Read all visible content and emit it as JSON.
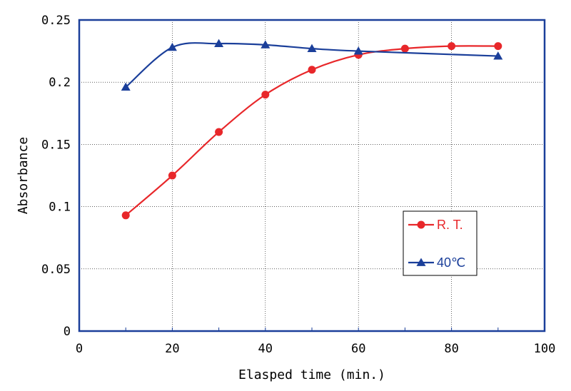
{
  "chart_data": {
    "type": "line",
    "title": "",
    "xlabel": "Elasped time (min.)",
    "ylabel": "Absorbance",
    "xlim": [
      0,
      100
    ],
    "ylim": [
      0,
      0.25
    ],
    "xticks": [
      "0",
      "20",
      "40",
      "60",
      "80",
      "100"
    ],
    "yticks": [
      "0",
      "0.05",
      "0.1",
      "0.15",
      "0.2",
      "0.25"
    ],
    "grid": true,
    "legend_position": "right-middle",
    "series": [
      {
        "name": "R. T.",
        "color": "#e8272a",
        "marker": "circle",
        "x": [
          10,
          20,
          30,
          40,
          50,
          60,
          70,
          80,
          90
        ],
        "values": [
          0.093,
          0.125,
          0.16,
          0.19,
          0.21,
          0.222,
          0.227,
          0.229,
          0.229
        ]
      },
      {
        "name": "40℃",
        "color": "#1b3f9a",
        "marker": "triangle",
        "x": [
          10,
          20,
          30,
          40,
          50,
          60,
          90
        ],
        "values": [
          0.196,
          0.228,
          0.231,
          0.23,
          0.227,
          0.225,
          0.221
        ]
      }
    ]
  }
}
